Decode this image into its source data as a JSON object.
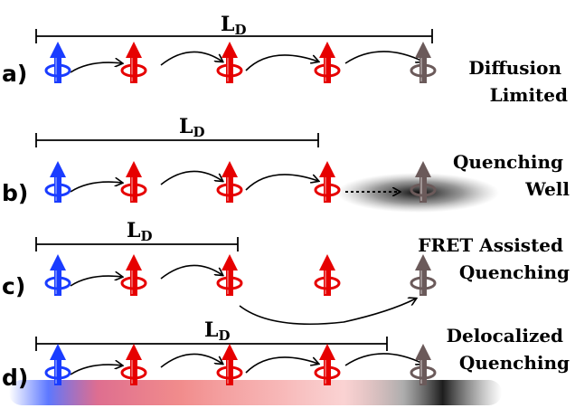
{
  "rows": [
    {
      "label": "a)",
      "ld_main": "L",
      "ld_sub": "D",
      "description_lines": [
        "Diffusion",
        "Limited"
      ],
      "spins": [
        "blue",
        "red",
        "red",
        "red",
        "gray"
      ],
      "quencher": "gray"
    },
    {
      "label": "b)",
      "ld_main": "L",
      "ld_sub": "D",
      "description_lines": [
        "Quenching",
        "Well"
      ],
      "spins": [
        "blue",
        "red",
        "red",
        "red",
        "gray"
      ],
      "quencher": "gray"
    },
    {
      "label": "c)",
      "ld_main": "L",
      "ld_sub": "D",
      "description_lines": [
        "FRET Assisted",
        "Quenching"
      ],
      "spins": [
        "blue",
        "red",
        "red",
        "red",
        "gray"
      ],
      "quencher": "gray"
    },
    {
      "label": "d)",
      "ld_main": "L",
      "ld_sub": "D",
      "description_lines": [
        "Delocalized",
        "Quenching"
      ],
      "spins": [
        "blue",
        "red",
        "red",
        "red",
        "gray"
      ],
      "quencher": "gray"
    }
  ],
  "colors": {
    "blue_spin": "#1a3cff",
    "red_spin": "#e60000",
    "gray_spin": "#6b5a5a",
    "arrow": "#000000"
  }
}
